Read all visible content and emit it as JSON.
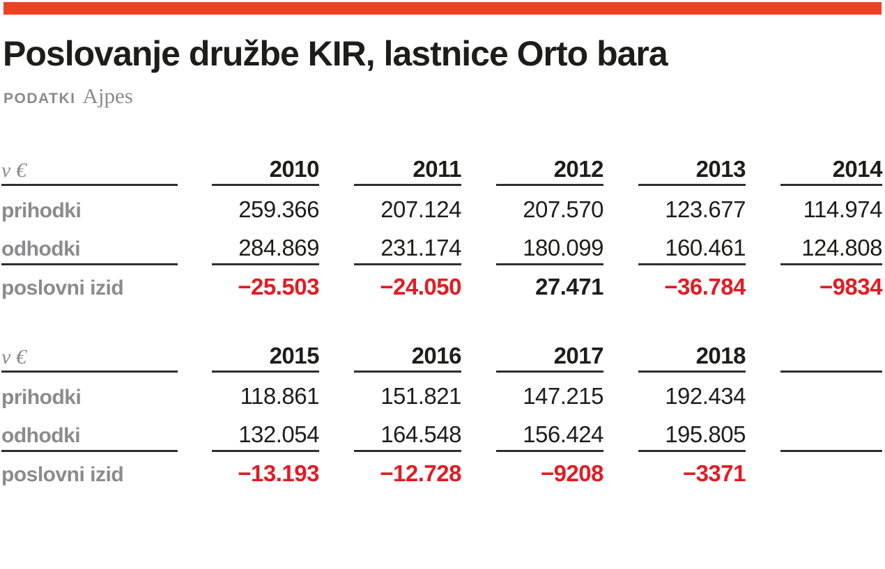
{
  "header": {
    "title": "Poslovanje družbe KIR, lastnice Orto bara",
    "source_label": "PODATKI",
    "source_value": "Ajpes"
  },
  "colors": {
    "accent_bar": "#ee4123",
    "negative": "#e31b23",
    "text": "#1d1d1b",
    "label_gray": "#8b8b8d",
    "rule": "#2e2e2d"
  },
  "chart_data": {
    "type": "table",
    "title": "Poslovanje družbe KIR, lastnice Orto bara",
    "source": "Ajpes",
    "unit": "v €",
    "tables": [
      {
        "unit_label": "v €",
        "years": [
          "2010",
          "2011",
          "2012",
          "2013",
          "2014"
        ],
        "rows": [
          {
            "label": "prihodki",
            "values": [
              "259.366",
              "207.124",
              "207.570",
              "123.677",
              "114.974"
            ]
          },
          {
            "label": "odhodki",
            "values": [
              "284.869",
              "231.174",
              "180.099",
              "160.461",
              "124.808"
            ]
          },
          {
            "label": "poslovni izid",
            "values": [
              "−25.503",
              "−24.050",
              "27.471",
              "−36.784",
              "−9834"
            ]
          }
        ]
      },
      {
        "unit_label": "v €",
        "years": [
          "2015",
          "2016",
          "2017",
          "2018",
          ""
        ],
        "rows": [
          {
            "label": "prihodki",
            "values": [
              "118.861",
              "151.821",
              "147.215",
              "192.434",
              ""
            ]
          },
          {
            "label": "odhodki",
            "values": [
              "132.054",
              "164.548",
              "156.424",
              "195.805",
              ""
            ]
          },
          {
            "label": "poslovni izid",
            "values": [
              "−13.193",
              "−12.728",
              "−9208",
              "−3371",
              ""
            ]
          }
        ]
      }
    ]
  }
}
